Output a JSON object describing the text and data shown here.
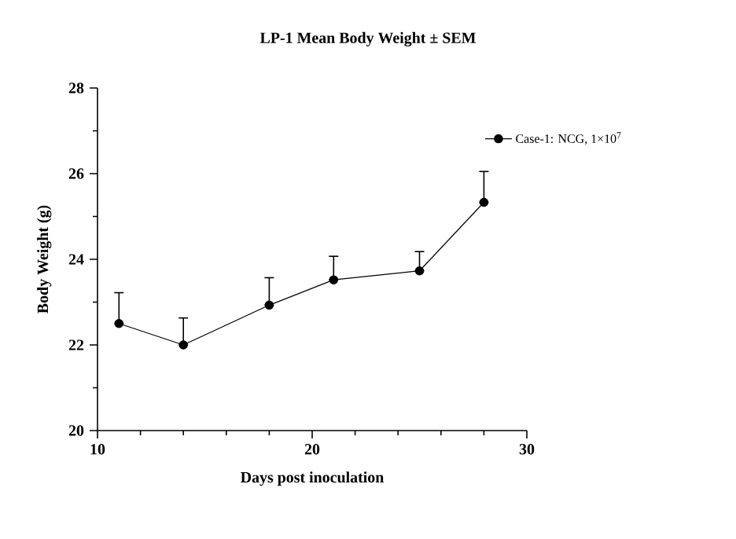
{
  "chart_data": {
    "type": "line",
    "title": "LP-1 Mean Body Weight ± SEM",
    "xlabel": "Days post inoculation",
    "ylabel": "Body Weight (g)",
    "x": [
      11,
      14,
      18,
      21,
      25,
      28
    ],
    "series": [
      {
        "name": "Case-1: NCG, 1×10$^{7}$",
        "color": "#000000",
        "values": [
          22.5,
          22.0,
          22.93,
          23.52,
          23.73,
          25.33
        ],
        "errors": [
          [
            22.5,
            23.22
          ],
          [
            22.0,
            22.63
          ],
          [
            22.93,
            23.57
          ],
          [
            23.52,
            24.07
          ],
          [
            23.73,
            24.18
          ],
          [
            25.33,
            26.05
          ]
        ]
      }
    ],
    "xlim": [
      10,
      30
    ],
    "xticks": [
      10,
      {
        "value": 12,
        "label": null
      },
      {
        "value": 14,
        "label": null
      },
      {
        "value": 16,
        "label": null
      },
      {
        "value": 18,
        "label": null
      },
      20,
      {
        "value": 22,
        "label": null
      },
      {
        "value": 24,
        "label": null
      },
      {
        "value": 26,
        "label": null
      },
      {
        "value": 28,
        "label": null
      },
      30
    ],
    "ylim": [
      20,
      28
    ],
    "yticks": [
      20,
      {
        "value": 21,
        "label": null
      },
      22,
      {
        "value": 23,
        "label": null
      },
      24,
      {
        "value": 25,
        "label": null
      },
      26,
      {
        "value": 27,
        "label": null
      },
      28
    ],
    "grid": false,
    "legend": "top right",
    "marker": "circle",
    "line_style": "solid"
  }
}
